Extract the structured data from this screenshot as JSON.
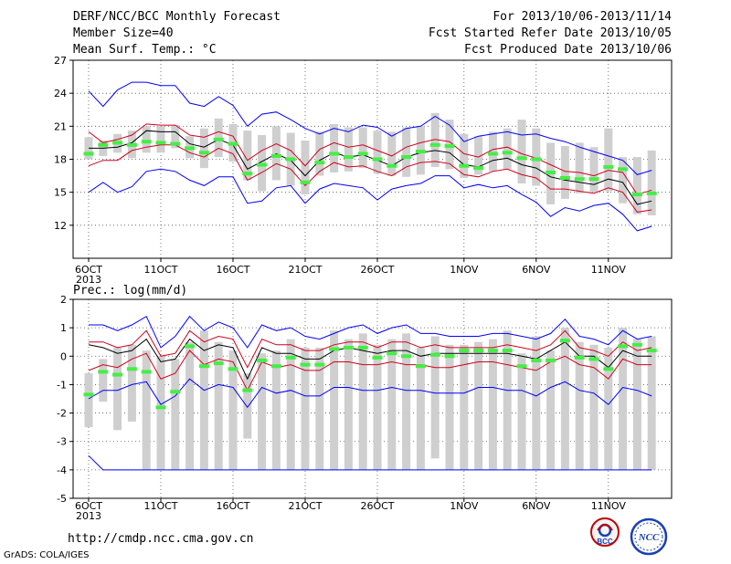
{
  "header": {
    "title": "DERF/NCC/BCC Monthly Forecast",
    "member_size": "Member Size=40",
    "variable": "Mean Surf. Temp.: °C",
    "for_range": "For 2013/10/06-2013/11/14",
    "fcst_started": "Fcst Started Refer Date 2013/10/05",
    "fcst_produced": "Fcst Produced Date 2013/10/06"
  },
  "footer": {
    "url": "http://cmdp.ncc.cma.gov.cn",
    "credit": "GrADS: COLA/IGES",
    "logo_bcc": "BCC",
    "logo_ncc": "NCC"
  },
  "colors": {
    "max_min": "#0000ff",
    "spread": "#d0021b",
    "mean": "#000000",
    "box": "#cfcfcf",
    "median": "#44ee44"
  },
  "chart_data": [
    {
      "type": "line",
      "title": "Mean Surf. Temp.: °C",
      "x": [
        "6OCT",
        "7OCT",
        "8OCT",
        "9OCT",
        "10OCT",
        "11OCT",
        "12OCT",
        "13OCT",
        "14OCT",
        "15OCT",
        "16OCT",
        "17OCT",
        "18OCT",
        "19OCT",
        "20OCT",
        "21OCT",
        "22OCT",
        "23OCT",
        "24OCT",
        "25OCT",
        "26OCT",
        "27OCT",
        "28OCT",
        "29OCT",
        "30OCT",
        "31OCT",
        "1NOV",
        "2NOV",
        "3NOV",
        "4NOV",
        "5NOV",
        "6NOV",
        "7NOV",
        "8NOV",
        "9NOV",
        "10NOV",
        "11NOV",
        "12NOV",
        "13NOV",
        "14NOV"
      ],
      "x_ticks": [
        "6OCT",
        "11OCT",
        "16OCT",
        "21OCT",
        "26OCT",
        "1NOV",
        "6NOV",
        "11NOV"
      ],
      "x_year": "2013",
      "ylim": [
        9,
        27
      ],
      "yticks": [
        12,
        15,
        18,
        21,
        24,
        27
      ],
      "grid": true,
      "series": [
        {
          "role": "max",
          "values": [
            24.2,
            22.8,
            24.3,
            25.0,
            25.0,
            24.7,
            24.7,
            23.1,
            22.8,
            23.7,
            22.9,
            21.0,
            22.1,
            22.3,
            21.6,
            20.8,
            20.3,
            20.8,
            20.5,
            21.1,
            20.9,
            20.1,
            20.8,
            21.0,
            21.9,
            21.1,
            19.6,
            20.1,
            20.3,
            20.5,
            20.2,
            20.3,
            19.9,
            19.6,
            19.1,
            18.7,
            18.3,
            17.9,
            16.6,
            17.0
          ]
        },
        {
          "role": "upper",
          "values": [
            20.5,
            19.5,
            19.8,
            20.2,
            21.2,
            21.1,
            21.1,
            20.2,
            20.0,
            20.5,
            20.1,
            17.9,
            18.8,
            19.4,
            18.8,
            17.4,
            18.9,
            19.5,
            19.1,
            19.3,
            18.8,
            18.3,
            19.1,
            19.5,
            19.8,
            19.6,
            18.5,
            18.2,
            18.9,
            19.1,
            18.5,
            18.1,
            17.5,
            16.9,
            16.8,
            16.5,
            17.0,
            16.8,
            14.8,
            15.2
          ]
        },
        {
          "role": "mean",
          "values": [
            19.0,
            19.0,
            19.1,
            19.5,
            20.6,
            20.5,
            20.5,
            19.4,
            19.1,
            19.8,
            19.3,
            17.1,
            17.8,
            18.5,
            17.9,
            16.5,
            17.9,
            18.6,
            18.2,
            18.4,
            17.9,
            17.4,
            18.2,
            18.6,
            18.8,
            18.6,
            17.5,
            17.3,
            17.9,
            18.1,
            17.5,
            17.2,
            16.4,
            16.1,
            15.9,
            15.7,
            16.2,
            15.9,
            13.9,
            14.2
          ]
        },
        {
          "role": "lower",
          "values": [
            17.4,
            17.9,
            17.9,
            18.8,
            19.1,
            19.3,
            19.3,
            18.6,
            18.2,
            19.0,
            18.5,
            16.1,
            16.8,
            17.6,
            17.1,
            15.6,
            16.9,
            17.7,
            17.3,
            17.4,
            16.9,
            16.5,
            17.3,
            17.7,
            17.8,
            17.6,
            16.6,
            16.4,
            16.9,
            17.1,
            16.6,
            16.3,
            15.3,
            15.3,
            15.1,
            14.9,
            15.4,
            15.0,
            13.2,
            13.4
          ]
        },
        {
          "role": "min",
          "values": [
            15.0,
            15.9,
            15.0,
            15.5,
            16.9,
            17.1,
            16.9,
            16.1,
            15.6,
            16.4,
            16.4,
            14.0,
            14.2,
            15.4,
            15.6,
            14.0,
            15.3,
            15.8,
            15.6,
            15.4,
            14.3,
            15.3,
            15.6,
            15.8,
            16.5,
            16.5,
            15.4,
            15.7,
            15.4,
            15.6,
            14.8,
            14.1,
            12.8,
            13.6,
            13.3,
            13.8,
            14.0,
            13.0,
            11.5,
            11.9
          ]
        }
      ],
      "boxes": {
        "top": [
          20.0,
          19.7,
          20.3,
          20.6,
          21.0,
          21.0,
          21.1,
          20.1,
          20.8,
          21.7,
          21.2,
          20.6,
          20.2,
          21.0,
          20.4,
          19.7,
          20.5,
          21.2,
          20.9,
          20.9,
          20.6,
          20.5,
          20.9,
          21.0,
          22.2,
          21.6,
          20.3,
          20.1,
          20.5,
          20.8,
          21.6,
          20.8,
          19.5,
          19.2,
          19.5,
          19.1,
          20.8,
          18.2,
          18.2,
          18.8
        ],
        "bottom": [
          18.0,
          18.3,
          18.6,
          18.1,
          18.6,
          18.6,
          19.0,
          18.1,
          17.2,
          18.2,
          17.8,
          16.1,
          15.1,
          16.1,
          15.6,
          14.8,
          16.5,
          16.8,
          16.9,
          17.2,
          16.7,
          16.5,
          16.4,
          16.6,
          17.3,
          17.1,
          16.3,
          16.6,
          16.9,
          17.1,
          15.8,
          15.6,
          13.9,
          14.4,
          14.9,
          15.0,
          15.1,
          14.0,
          13.0,
          12.9
        ],
        "median": [
          18.5,
          19.3,
          19.5,
          19.3,
          19.6,
          19.5,
          19.4,
          19.0,
          18.6,
          19.8,
          19.4,
          16.7,
          17.5,
          18.3,
          18.0,
          15.9,
          17.7,
          18.5,
          18.2,
          18.5,
          18.0,
          17.4,
          18.2,
          18.7,
          19.3,
          19.2,
          17.4,
          17.2,
          18.5,
          18.6,
          18.1,
          18.0,
          16.8,
          16.3,
          16.2,
          16.2,
          17.3,
          17.1,
          14.8,
          14.9
        ]
      }
    },
    {
      "type": "line",
      "title": "Prec.: log(mm/d)",
      "x": [
        "6OCT",
        "7OCT",
        "8OCT",
        "9OCT",
        "10OCT",
        "11OCT",
        "12OCT",
        "13OCT",
        "14OCT",
        "15OCT",
        "16OCT",
        "17OCT",
        "18OCT",
        "19OCT",
        "20OCT",
        "21OCT",
        "22OCT",
        "23OCT",
        "24OCT",
        "25OCT",
        "26OCT",
        "27OCT",
        "28OCT",
        "29OCT",
        "30OCT",
        "31OCT",
        "1NOV",
        "2NOV",
        "3NOV",
        "4NOV",
        "5NOV",
        "6NOV",
        "7NOV",
        "8NOV",
        "9NOV",
        "10NOV",
        "11NOV",
        "12NOV",
        "13NOV",
        "14NOV"
      ],
      "x_ticks": [
        "6OCT",
        "11OCT",
        "16OCT",
        "21OCT",
        "26OCT",
        "1NOV",
        "6NOV",
        "11NOV"
      ],
      "x_year": "2013",
      "ylim": [
        -5,
        2
      ],
      "yticks": [
        -5,
        -4,
        -3,
        -2,
        -1,
        0,
        1,
        2
      ],
      "grid": true,
      "series": [
        {
          "role": "max",
          "values": [
            1.1,
            1.1,
            0.9,
            1.1,
            1.4,
            0.3,
            0.7,
            1.4,
            0.9,
            1.2,
            1.0,
            0.3,
            1.1,
            0.9,
            1.0,
            0.7,
            0.6,
            0.8,
            1.0,
            1.1,
            0.8,
            1.0,
            1.1,
            0.8,
            0.8,
            0.7,
            0.7,
            0.7,
            0.8,
            0.8,
            0.7,
            0.6,
            0.8,
            1.3,
            0.7,
            0.6,
            0.4,
            0.9,
            0.6,
            0.7
          ]
        },
        {
          "role": "upper",
          "values": [
            0.5,
            0.5,
            0.3,
            0.4,
            0.9,
            0.0,
            0.1,
            0.9,
            0.5,
            0.7,
            0.6,
            -0.4,
            0.6,
            0.4,
            0.4,
            0.2,
            0.2,
            0.4,
            0.5,
            0.5,
            0.3,
            0.5,
            0.5,
            0.3,
            0.4,
            0.3,
            0.3,
            0.3,
            0.3,
            0.4,
            0.3,
            0.2,
            0.4,
            0.9,
            0.3,
            0.2,
            0.0,
            0.5,
            0.2,
            0.3
          ]
        },
        {
          "role": "mean",
          "values": [
            0.4,
            0.3,
            0.1,
            0.2,
            0.6,
            -0.2,
            -0.1,
            0.6,
            0.2,
            0.4,
            0.3,
            -0.8,
            0.3,
            0.1,
            0.1,
            -0.1,
            -0.1,
            0.2,
            0.3,
            0.2,
            0.1,
            0.2,
            0.2,
            0.0,
            0.1,
            0.1,
            0.1,
            0.1,
            0.1,
            0.1,
            0.0,
            -0.1,
            0.2,
            0.5,
            0.0,
            0.0,
            -0.4,
            0.2,
            0.0,
            0.0
          ]
        },
        {
          "role": "lower",
          "values": [
            -0.5,
            -0.3,
            -0.4,
            -0.1,
            0.1,
            -0.8,
            -0.6,
            0.2,
            -0.3,
            -0.1,
            -0.2,
            -1.2,
            -0.2,
            -0.4,
            -0.3,
            -0.5,
            -0.5,
            -0.2,
            -0.2,
            -0.3,
            -0.3,
            -0.2,
            -0.3,
            -0.3,
            -0.4,
            -0.4,
            -0.3,
            -0.2,
            -0.2,
            -0.3,
            -0.4,
            -0.5,
            -0.2,
            0.0,
            -0.3,
            -0.4,
            -0.8,
            -0.1,
            -0.3,
            -0.3
          ]
        },
        {
          "role": "min",
          "values": [
            -1.5,
            -1.2,
            -1.2,
            -1.0,
            -0.9,
            -1.7,
            -1.4,
            -0.8,
            -1.2,
            -1.0,
            -1.1,
            -1.8,
            -1.1,
            -1.3,
            -1.2,
            -1.4,
            -1.4,
            -1.1,
            -1.1,
            -1.2,
            -1.2,
            -1.1,
            -1.2,
            -1.2,
            -1.3,
            -1.3,
            -1.3,
            -1.1,
            -1.1,
            -1.2,
            -1.2,
            -1.4,
            -1.1,
            -0.9,
            -1.2,
            -1.3,
            -1.7,
            -1.1,
            -1.2,
            -1.4
          ]
        },
        {
          "role": "floor",
          "values": [
            -3.5,
            -4.0,
            -4.0,
            -4.0,
            -4.0,
            -4.0,
            -4.0,
            -4.0,
            -4.0,
            -4.0,
            -4.0,
            -4.0,
            -4.0,
            -4.0,
            -4.0,
            -4.0,
            -4.0,
            -4.0,
            -4.0,
            -4.0,
            -4.0,
            -4.0,
            -4.0,
            -4.0,
            -4.0,
            -4.0,
            -4.0,
            -4.0,
            -4.0,
            -4.0,
            -4.0,
            -4.0,
            -4.0,
            -4.0,
            -4.0,
            -4.0,
            -4.0,
            -4.0,
            -4.0,
            -4.0
          ]
        }
      ],
      "boxes": {
        "top": [
          -0.6,
          -0.1,
          0.3,
          0.4,
          0.2,
          0.0,
          -0.1,
          0.5,
          0.9,
          0.5,
          0.2,
          -0.6,
          0.1,
          0.2,
          0.6,
          0.3,
          0.3,
          0.9,
          0.6,
          0.8,
          0.4,
          0.6,
          0.8,
          0.3,
          0.7,
          0.4,
          0.4,
          0.5,
          0.6,
          0.9,
          0.1,
          0.7,
          0.2,
          1.0,
          0.5,
          0.4,
          0.3,
          1.0,
          0.6,
          0.7
        ],
        "bottom": [
          -2.5,
          -1.6,
          -2.6,
          -2.3,
          -4.0,
          -4.0,
          -4.0,
          -4.0,
          -4.0,
          -4.0,
          -4.0,
          -2.9,
          -4.0,
          -4.0,
          -4.0,
          -4.0,
          -4.0,
          -4.0,
          -4.0,
          -4.0,
          -4.0,
          -4.0,
          -4.0,
          -4.0,
          -3.6,
          -4.0,
          -4.0,
          -4.0,
          -4.0,
          -4.0,
          -4.0,
          -4.0,
          -4.0,
          -4.0,
          -4.0,
          -4.0,
          -4.0,
          -4.0,
          -4.0,
          -4.0
        ],
        "median": [
          -1.35,
          -0.55,
          -0.65,
          -0.45,
          -0.55,
          -1.8,
          -1.25,
          0.35,
          -0.35,
          -0.25,
          -0.45,
          -1.2,
          -0.15,
          -0.35,
          -0.05,
          -0.3,
          -0.3,
          0.25,
          0.3,
          0.3,
          -0.05,
          0.1,
          0.0,
          -0.35,
          0.05,
          0.0,
          0.2,
          0.2,
          0.2,
          0.2,
          -0.35,
          -0.15,
          -0.15,
          0.55,
          -0.05,
          -0.1,
          -0.45,
          0.35,
          0.4,
          0.2
        ]
      }
    }
  ]
}
